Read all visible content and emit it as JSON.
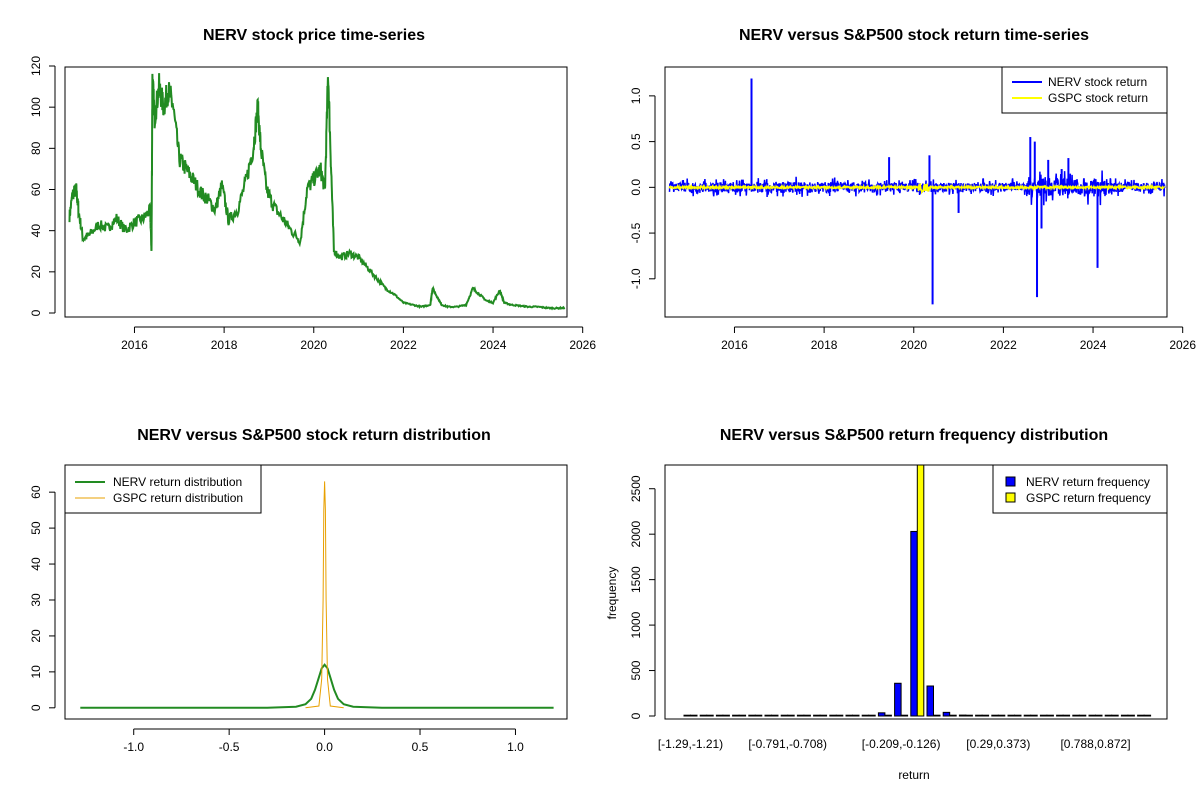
{
  "chart_data": [
    {
      "id": "p1",
      "type": "line",
      "title": "NERV stock price time-series",
      "xlabel": "",
      "ylabel": "",
      "xlim": [
        2014.45,
        2025.65
      ],
      "ylim": [
        0,
        120
      ],
      "x_ticks": [
        "2016",
        "2018",
        "2020",
        "2022",
        "2024",
        "2026"
      ],
      "y_ticks": [
        "0",
        "20",
        "40",
        "60",
        "80",
        "100",
        "120"
      ],
      "colors": {
        "price": "#228b22"
      },
      "series": [
        {
          "name": "NERV price",
          "color": "#228b22",
          "x": [
            2014.55,
            2014.62,
            2014.7,
            2014.75,
            2014.85,
            2015.0,
            2015.2,
            2015.4,
            2015.6,
            2015.8,
            2016.0,
            2016.2,
            2016.35,
            2016.38,
            2016.4,
            2016.45,
            2016.55,
            2016.65,
            2016.75,
            2016.85,
            2017.0,
            2017.15,
            2017.3,
            2017.5,
            2017.65,
            2017.8,
            2017.95,
            2018.1,
            2018.3,
            2018.5,
            2018.65,
            2018.75,
            2018.82,
            2018.95,
            2019.1,
            2019.3,
            2019.5,
            2019.7,
            2019.85,
            2020.0,
            2020.15,
            2020.25,
            2020.32,
            2020.38,
            2020.45,
            2020.6,
            2020.8,
            2021.0,
            2021.2,
            2021.4,
            2021.6,
            2021.8,
            2022.0,
            2022.2,
            2022.4,
            2022.6,
            2022.65,
            2022.75,
            2022.85,
            2023.0,
            2023.2,
            2023.4,
            2023.55,
            2023.7,
            2023.85,
            2024.0,
            2024.15,
            2024.25,
            2024.4,
            2024.6,
            2024.8,
            2025.0,
            2025.2,
            2025.4,
            2025.6
          ],
          "values": [
            47,
            58,
            60,
            50,
            36,
            38,
            43,
            41,
            46,
            40,
            44,
            46,
            50,
            30,
            114,
            95,
            110,
            100,
            108,
            102,
            75,
            70,
            65,
            58,
            55,
            50,
            62,
            45,
            50,
            65,
            80,
            100,
            80,
            60,
            52,
            46,
            40,
            35,
            60,
            65,
            70,
            60,
            117,
            75,
            30,
            27,
            29,
            27,
            22,
            17,
            12,
            9,
            5,
            4,
            3,
            4,
            12,
            8,
            4,
            3,
            3,
            4,
            12,
            9,
            6,
            5,
            11,
            5,
            4,
            3.5,
            3,
            3,
            2.5,
            2.3,
            2.5
          ]
        }
      ]
    },
    {
      "id": "p2",
      "type": "line",
      "title": "NERV versus S&P500 stock return time-series",
      "xlabel": "",
      "ylabel": "",
      "xlim": [
        2014.45,
        2025.65
      ],
      "ylim": [
        -1.33,
        1.25
      ],
      "x_ticks": [
        "2016",
        "2018",
        "2020",
        "2022",
        "2024",
        "2026"
      ],
      "y_ticks": [
        "-1.0",
        "-0.5",
        "0.0",
        "0.5",
        "1.0"
      ],
      "legend": {
        "position": "top-right",
        "entries": [
          "NERV stock return",
          "GSPC stock return"
        ]
      },
      "colors": {
        "nerv": "#0000ff",
        "gspc": "#ffff00"
      },
      "series": [
        {
          "name": "NERV stock return",
          "color": "#0000ff",
          "spikes_x": [
            2016.38,
            2019.45,
            2020.35,
            2020.42,
            2021.0,
            2022.6,
            2022.7,
            2022.75,
            2022.85,
            2023.0,
            2023.3,
            2023.45,
            2024.1
          ],
          "spikes_y": [
            1.19,
            0.33,
            0.35,
            -1.28,
            -0.28,
            0.55,
            0.5,
            -1.2,
            -0.45,
            0.3,
            0.2,
            0.32,
            -0.88
          ]
        },
        {
          "name": "GSPC stock return",
          "color": "#ffff00"
        }
      ]
    },
    {
      "id": "p3",
      "type": "line",
      "title": "NERV versus S&P500 stock return distribution",
      "xlabel": "",
      "ylabel": "",
      "xlim": [
        -1.36,
        1.27
      ],
      "ylim": [
        -2,
        67
      ],
      "x_ticks": [
        "-1.0",
        "-0.5",
        "0.0",
        "0.5",
        "1.0"
      ],
      "y_ticks": [
        "0",
        "10",
        "20",
        "30",
        "40",
        "50",
        "60"
      ],
      "legend": {
        "position": "top-left",
        "entries": [
          "NERV return distribution",
          "GSPC return distribution"
        ]
      },
      "colors": {
        "nerv": "#228b22",
        "gspc": "#e8a000"
      },
      "series": [
        {
          "name": "NERV return distribution",
          "color": "#228b22",
          "x": [
            -1.28,
            -0.3,
            -0.15,
            -0.1,
            -0.07,
            -0.05,
            -0.03,
            -0.015,
            0.0,
            0.015,
            0.03,
            0.05,
            0.07,
            0.1,
            0.15,
            0.3,
            1.2
          ],
          "values": [
            0,
            0,
            0.3,
            1,
            2.5,
            5,
            8.5,
            11,
            12,
            11,
            8.5,
            5,
            2.5,
            1,
            0.3,
            0,
            0
          ]
        },
        {
          "name": "GSPC return distribution",
          "color": "#e8a000",
          "x": [
            -0.1,
            -0.03,
            -0.015,
            -0.008,
            -0.004,
            0.0,
            0.004,
            0.008,
            0.015,
            0.03,
            0.1
          ],
          "values": [
            0,
            0.5,
            8,
            30,
            55,
            63,
            55,
            30,
            8,
            0.5,
            0
          ]
        }
      ]
    },
    {
      "id": "p4",
      "type": "bar",
      "title": "NERV versus S&P500 return frequency distribution",
      "xlabel": "return",
      "ylabel": "frequency",
      "ylim": [
        0,
        2750
      ],
      "y_ticks": [
        "0",
        "500",
        "1000",
        "1500",
        "2000",
        "2500"
      ],
      "category_labels": [
        "[-1.29,-1.21)",
        "[-0.791,-0.708)",
        "[-0.209,-0.126)",
        "[0.29,0.373)",
        "[0.788,0.872]"
      ],
      "legend": {
        "position": "top-right",
        "entries": [
          "NERV return frequency",
          "GSPC return frequency"
        ]
      },
      "colors": {
        "nerv": "#0000ff",
        "gspc": "#ffff00"
      },
      "series": [
        {
          "name": "NERV return frequency",
          "color": "#0000ff",
          "values": [
            1,
            0,
            0,
            0,
            0,
            0,
            0,
            1,
            0,
            0,
            0,
            0,
            35,
            360,
            2030,
            330,
            40,
            10,
            4,
            5,
            2,
            1,
            0,
            0,
            0,
            0,
            0,
            0,
            1
          ]
        },
        {
          "name": "GSPC return frequency",
          "color": "#ffff00",
          "values": [
            0,
            0,
            0,
            0,
            0,
            0,
            0,
            0,
            0,
            0,
            0,
            0,
            0,
            0,
            2800,
            0,
            0,
            0,
            0,
            0,
            0,
            0,
            0,
            0,
            0,
            0,
            0,
            0,
            0
          ]
        }
      ]
    }
  ]
}
